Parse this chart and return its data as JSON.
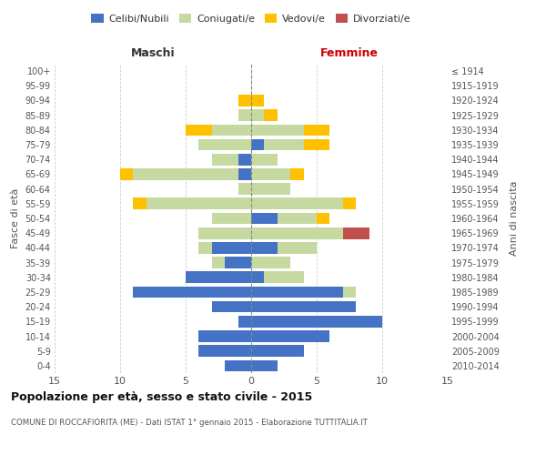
{
  "age_groups": [
    "100+",
    "95-99",
    "90-94",
    "85-89",
    "80-84",
    "75-79",
    "70-74",
    "65-69",
    "60-64",
    "55-59",
    "50-54",
    "45-49",
    "40-44",
    "35-39",
    "30-34",
    "25-29",
    "20-24",
    "15-19",
    "10-14",
    "5-9",
    "0-4"
  ],
  "birth_years": [
    "≤ 1914",
    "1915-1919",
    "1920-1924",
    "1925-1929",
    "1930-1934",
    "1935-1939",
    "1940-1944",
    "1945-1949",
    "1950-1954",
    "1955-1959",
    "1960-1964",
    "1965-1969",
    "1970-1974",
    "1975-1979",
    "1980-1984",
    "1985-1989",
    "1990-1994",
    "1995-1999",
    "2000-2004",
    "2005-2009",
    "2010-2014"
  ],
  "male_celibi": [
    0,
    0,
    0,
    0,
    0,
    0,
    1,
    1,
    0,
    0,
    0,
    0,
    3,
    2,
    5,
    9,
    3,
    1,
    4,
    4,
    2
  ],
  "male_coniugati": [
    0,
    0,
    0,
    1,
    3,
    4,
    2,
    8,
    1,
    8,
    3,
    4,
    1,
    1,
    0,
    0,
    0,
    0,
    0,
    0,
    0
  ],
  "male_vedovi": [
    0,
    0,
    1,
    0,
    2,
    0,
    0,
    1,
    0,
    1,
    0,
    0,
    0,
    0,
    0,
    0,
    0,
    0,
    0,
    0,
    0
  ],
  "male_divorziati": [
    0,
    0,
    0,
    0,
    0,
    0,
    0,
    0,
    0,
    0,
    0,
    0,
    0,
    0,
    0,
    0,
    0,
    0,
    0,
    0,
    0
  ],
  "female_nubili": [
    0,
    0,
    0,
    0,
    0,
    1,
    0,
    0,
    0,
    0,
    2,
    0,
    2,
    0,
    1,
    7,
    8,
    10,
    6,
    4,
    2
  ],
  "female_coniugate": [
    0,
    0,
    0,
    1,
    4,
    3,
    2,
    3,
    3,
    7,
    3,
    7,
    3,
    3,
    3,
    1,
    0,
    0,
    0,
    0,
    0
  ],
  "female_vedove": [
    0,
    0,
    1,
    1,
    2,
    2,
    0,
    1,
    0,
    1,
    1,
    0,
    0,
    0,
    0,
    0,
    0,
    0,
    0,
    0,
    0
  ],
  "female_divorziate": [
    0,
    0,
    0,
    0,
    0,
    0,
    0,
    0,
    0,
    0,
    0,
    2,
    0,
    0,
    0,
    0,
    0,
    0,
    0,
    0,
    0
  ],
  "colors": {
    "celibi": "#4472c4",
    "coniugati": "#c5d9a0",
    "vedovi": "#ffc000",
    "divorziati": "#c0504d"
  },
  "xlim": 15,
  "title": "Popolazione per età, sesso e stato civile - 2015",
  "subtitle": "COMUNE DI ROCCAFIORITA (ME) - Dati ISTAT 1° gennaio 2015 - Elaborazione TUTTITALIA.IT",
  "ylabel_left": "Fasce di età",
  "ylabel_right": "Anni di nascita",
  "legend_labels": [
    "Celibi/Nubili",
    "Coniugati/e",
    "Vedovi/e",
    "Divorziati/e"
  ],
  "maschi_label": "Maschi",
  "femmine_label": "Femmine",
  "background_color": "#ffffff",
  "grid_color": "#cccccc"
}
